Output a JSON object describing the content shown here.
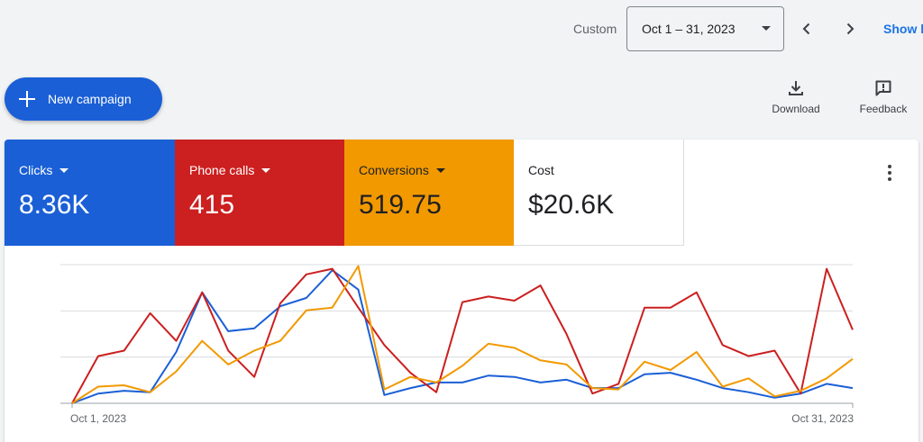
{
  "date_range": {
    "label": "Custom",
    "value": "Oct 1 – 31, 2023",
    "show_link": "Show l"
  },
  "actions": {
    "new_campaign": "New campaign",
    "download": "Download",
    "feedback": "Feedback"
  },
  "metrics": [
    {
      "label": "Clicks",
      "value": "8.36K",
      "color": "#1a5fd6",
      "has_dropdown": true
    },
    {
      "label": "Phone calls",
      "value": "415",
      "color": "#cc1f1f",
      "has_dropdown": true
    },
    {
      "label": "Conversions",
      "value": "519.75",
      "color": "#f29900",
      "has_dropdown": true
    },
    {
      "label": "Cost",
      "value": "$20.6K",
      "color": "#ffffff",
      "has_dropdown": false
    }
  ],
  "chart_data": {
    "type": "line",
    "x_start_label": "Oct 1, 2023",
    "x_end_label": "Oct 31, 2023",
    "x": [
      1,
      2,
      3,
      4,
      5,
      6,
      7,
      8,
      9,
      10,
      11,
      12,
      13,
      14,
      15,
      16,
      17,
      18,
      19,
      20,
      21,
      22,
      23,
      24,
      25,
      26,
      27,
      28,
      29,
      30,
      31
    ],
    "y_gridlines": 3,
    "ylim": [
      0,
      100
    ],
    "series": [
      {
        "color": "#1a5fd6",
        "values": [
          0,
          7,
          9,
          8,
          37,
          80,
          52,
          54,
          70,
          76,
          96,
          82,
          6,
          11,
          15,
          15,
          20,
          19,
          15,
          17,
          11,
          11,
          21,
          22,
          17,
          11,
          8,
          4,
          7,
          14,
          11
        ]
      },
      {
        "color": "#cc1f1f",
        "values": [
          0,
          34,
          38,
          65,
          45,
          80,
          38,
          19,
          72,
          93,
          97,
          69,
          42,
          22,
          8,
          73,
          77,
          74,
          85,
          50,
          7,
          14,
          69,
          69,
          80,
          42,
          34,
          38,
          7,
          97,
          53
        ]
      },
      {
        "color": "#f29900",
        "values": [
          0,
          12,
          13,
          8,
          23,
          45,
          28,
          38,
          45,
          67,
          69,
          99,
          10,
          19,
          15,
          27,
          43,
          40,
          31,
          28,
          11,
          10,
          30,
          24,
          37,
          12,
          18,
          5,
          9,
          18,
          32
        ]
      }
    ]
  }
}
